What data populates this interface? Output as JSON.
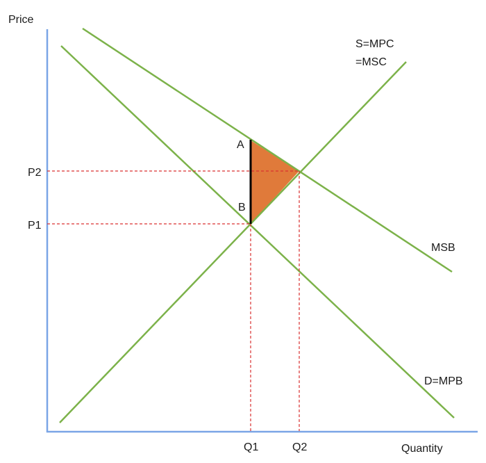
{
  "axes": {
    "y_label": "Price",
    "x_label": "Quantity"
  },
  "curves": {
    "msb_label": "MSB",
    "supply_label_line1": "S=MPC",
    "supply_label_line2": "=MSC",
    "demand_label": "D=MPB"
  },
  "price_levels": {
    "p1": "P1",
    "p2": "P2"
  },
  "quantity_levels": {
    "q1": "Q1",
    "q2": "Q2"
  },
  "points": {
    "a": "A",
    "b": "B"
  },
  "colors": {
    "axis": "#7aa5e6",
    "curves": "#7cb24a",
    "guides": "#d93030",
    "welfare_loss_triangle": "#e07a3a",
    "segment": "#000000"
  }
}
